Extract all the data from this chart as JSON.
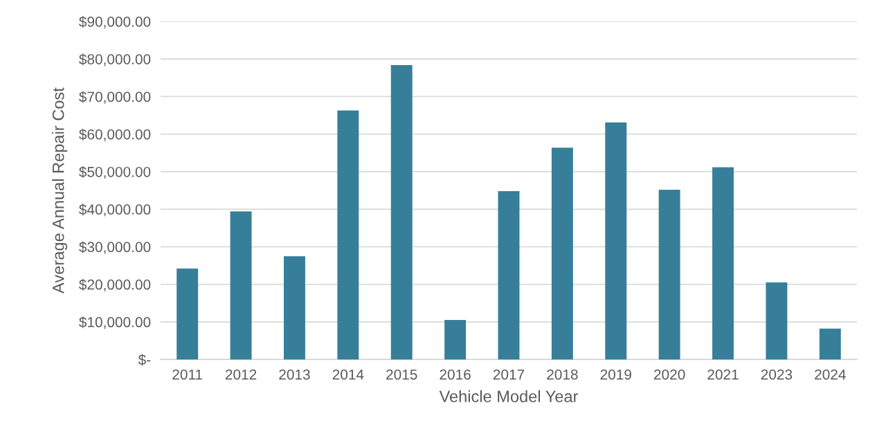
{
  "chart_data": {
    "type": "bar",
    "xlabel": "Vehicle Model Year",
    "ylabel": "Average Annual Repair Cost",
    "categories": [
      "2011",
      "2012",
      "2013",
      "2014",
      "2015",
      "2016",
      "2017",
      "2018",
      "2019",
      "2020",
      "2021",
      "2023",
      "2024"
    ],
    "values": [
      24200,
      39400,
      27500,
      66300,
      78400,
      10500,
      44800,
      56400,
      63100,
      45200,
      51200,
      20500,
      8200
    ],
    "color": "#377f99",
    "ylim": [
      0,
      90000
    ],
    "yticks": [
      {
        "value": 0,
        "label": "$-"
      },
      {
        "value": 10000,
        "label": "$10,000.00"
      },
      {
        "value": 20000,
        "label": "$20,000.00"
      },
      {
        "value": 30000,
        "label": "$30,000.00"
      },
      {
        "value": 40000,
        "label": "$40,000.00"
      },
      {
        "value": 50000,
        "label": "$50,000.00"
      },
      {
        "value": 60000,
        "label": "$60,000.00"
      },
      {
        "value": 70000,
        "label": "$70,000.00"
      },
      {
        "value": 80000,
        "label": "$80,000.00"
      },
      {
        "value": 90000,
        "label": "$90,000.00"
      }
    ],
    "grid": "y",
    "legend": false
  }
}
